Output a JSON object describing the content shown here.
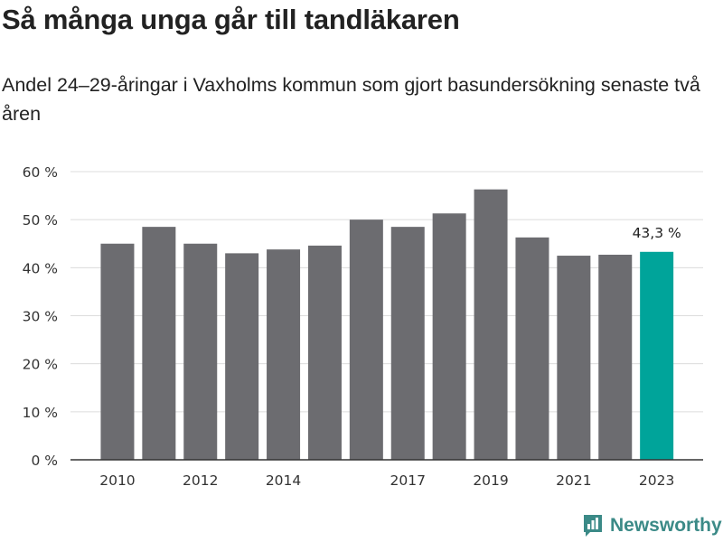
{
  "title": "Så många unga går till tandläkaren",
  "subtitle": "Andel 24–29-åringar i Vaxholms kommun som gjort basundersökning senaste två åren",
  "brand": {
    "name": "Newsworthy",
    "icon": "newsworthy-logo-icon"
  },
  "colors": {
    "bar": "#6c6c70",
    "highlight": "#00a49a",
    "grid": "#dcdcdc",
    "axis": "#333333",
    "brand": "#3b8a87"
  },
  "chart_data": {
    "type": "bar",
    "title": "Så många unga går till tandläkaren",
    "xlabel": "",
    "ylabel": "",
    "ylim": [
      0,
      60
    ],
    "yticks": [
      0,
      10,
      20,
      30,
      40,
      50,
      60
    ],
    "ytick_labels": [
      "0 %",
      "10 %",
      "20 %",
      "30 %",
      "40 %",
      "50 %",
      "60 %"
    ],
    "categories": [
      2010,
      2011,
      2012,
      2013,
      2014,
      2015,
      2016,
      2017,
      2018,
      2019,
      2020,
      2021,
      2022,
      2023
    ],
    "xtick_labels": {
      "2010": "2010",
      "2012": "2012",
      "2014": "2014",
      "2017": "2017",
      "2019": "2019",
      "2021": "2021",
      "2023": "2023"
    },
    "values": [
      45.0,
      48.5,
      45.0,
      43.0,
      43.8,
      44.6,
      50.0,
      48.5,
      51.3,
      56.3,
      46.3,
      42.5,
      42.7,
      43.3
    ],
    "highlight_index": 13,
    "annotation": {
      "category": 2023,
      "label": "43,3 %"
    },
    "grid": true
  }
}
